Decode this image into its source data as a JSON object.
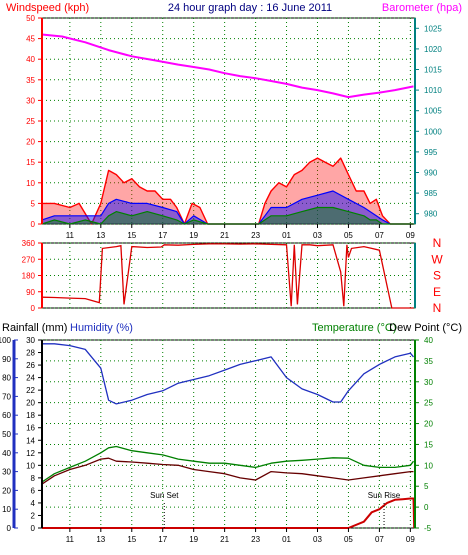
{
  "header": {
    "left_label": "Windspeed (kph)",
    "title": "24 hour graph day : 16 June 2011",
    "right_label": "Barometer (hpa)"
  },
  "colors": {
    "background": "#ffffff",
    "axis_left_upper": "#ff0000",
    "axis_right_upper": "#008080",
    "axis_left_lower": "#000000",
    "axis_right_lower": "#008000",
    "grid": "#008000",
    "wind_gust": "#ff0000",
    "wind_avg": "#0000ff",
    "wind_speed": "#008000",
    "barometer": "#ff00ff",
    "wind_dir": "#dd0000",
    "humidity": "#2030c0",
    "temperature": "#008000",
    "dew_point": "#660000",
    "rainfall": "#cc0000",
    "sun_marker": "#000000"
  },
  "lower_header": {
    "rainfall_label": "Rainfall (mm)",
    "humidity_label": "Humidity (%)",
    "temperature_label": "Temperature (°C)",
    "dewpoint_label": "Dew Point (°C)"
  },
  "sun": {
    "sunset_label": "Sun Set",
    "sunrise_label": "Sun Rise"
  },
  "chart_data": [
    {
      "type": "line",
      "name": "wind-and-barometer",
      "x_tick_labels": [
        "11",
        "13",
        "15",
        "17",
        "19",
        "21",
        "23",
        "01",
        "03",
        "05",
        "07",
        "09"
      ],
      "x_tick_hours": [
        11,
        13,
        15,
        17,
        19,
        21,
        23,
        25,
        27,
        29,
        31,
        33
      ],
      "xlim": [
        9.2,
        33.3
      ],
      "left_axis": {
        "ylim": [
          0,
          50
        ],
        "ticks": [
          0,
          5,
          10,
          15,
          20,
          25,
          30,
          35,
          40,
          45,
          50
        ]
      },
      "right_axis": {
        "ylim": [
          977.5,
          1027.5
        ],
        "ticks": [
          980,
          985,
          990,
          995,
          1000,
          1005,
          1010,
          1015,
          1020,
          1025
        ]
      },
      "series": [
        {
          "role": "barometer",
          "axis": "right",
          "x": [
            9.2,
            10.5,
            12,
            13.5,
            15,
            16.5,
            18,
            19,
            20,
            21,
            22,
            23,
            24,
            25,
            26,
            27,
            28,
            29,
            30,
            31,
            32,
            33.2
          ],
          "y": [
            1023.5,
            1023,
            1021.6,
            1019.7,
            1018.2,
            1017.2,
            1016.2,
            1015.6,
            1015,
            1014.1,
            1013.4,
            1012.9,
            1012.2,
            1011.5,
            1010.6,
            1010,
            1009.2,
            1008.3,
            1008.9,
            1009.4,
            1010,
            1010.9
          ]
        },
        {
          "role": "wind_gust",
          "axis": "left",
          "x": [
            9.2,
            10,
            11,
            11.6,
            12.4,
            13,
            13.5,
            14,
            14.5,
            15,
            15.5,
            16,
            16.5,
            17,
            17.5,
            17.9,
            18.4,
            18.9,
            19.4,
            19.9,
            20.5,
            22,
            23.2,
            23.6,
            24,
            24.5,
            25,
            25.5,
            26,
            26.5,
            27,
            27.5,
            28,
            28.5,
            29,
            29.5,
            30,
            30.4,
            30.8,
            31.2,
            31.7,
            32.6,
            33.2
          ],
          "y": [
            5,
            5,
            4,
            5,
            0,
            5,
            13,
            12,
            10,
            11,
            9,
            8,
            8,
            6,
            6,
            4,
            0,
            5,
            4,
            0,
            0,
            0,
            0,
            5,
            8,
            10,
            9,
            12,
            13,
            15,
            16,
            15,
            14,
            16,
            12,
            8,
            8,
            5,
            6,
            2,
            0,
            0,
            0
          ]
        },
        {
          "role": "wind_avg",
          "axis": "left",
          "x": [
            9.2,
            10,
            11,
            12,
            13,
            13.5,
            14,
            15,
            16,
            17,
            17.9,
            18.4,
            19,
            19.9,
            20.5,
            23.2,
            23.6,
            24,
            25,
            26,
            27,
            28,
            29,
            30,
            30.4,
            30.8,
            31.2,
            31.7,
            33.2
          ],
          "y": [
            1,
            2,
            2,
            2,
            2,
            5,
            6,
            5,
            5,
            4,
            3,
            0,
            2,
            0,
            0,
            0,
            2,
            4,
            4,
            6,
            7,
            8,
            6,
            4,
            3,
            2,
            1,
            0,
            0
          ]
        },
        {
          "role": "wind_speed",
          "axis": "left",
          "x": [
            9.2,
            10,
            11,
            12,
            13,
            13.5,
            14,
            15,
            16,
            17,
            17.9,
            18.4,
            19,
            19.9,
            20.5,
            23.2,
            23.6,
            24,
            25,
            26,
            27,
            28,
            29,
            30,
            30.4,
            30.8,
            31.2,
            31.7,
            33.2
          ],
          "y": [
            0,
            1,
            0,
            1,
            0,
            2,
            3,
            2,
            3,
            2,
            1,
            0,
            1,
            0,
            0,
            0,
            1,
            2,
            2,
            3,
            4,
            4,
            3,
            2,
            1,
            1,
            0,
            0,
            0
          ]
        }
      ]
    },
    {
      "type": "line",
      "name": "wind-direction",
      "ylim": [
        0,
        360
      ],
      "left_ticks": [
        0,
        90,
        180,
        270,
        360
      ],
      "direction_labels": [
        "N",
        "W",
        "S",
        "E",
        "N"
      ],
      "xlim": [
        9.2,
        33.3
      ],
      "series": [
        {
          "role": "wind_dir",
          "x": [
            9.2,
            10,
            11,
            12,
            12.9,
            13.1,
            14,
            14.3,
            14.5,
            15,
            16,
            16.9,
            17.1,
            18,
            19,
            20,
            21,
            22,
            23,
            24,
            25,
            25.3,
            25.5,
            25.7,
            26,
            26.5,
            27,
            28,
            28.5,
            28.7,
            28.9,
            29,
            29.2,
            30,
            30.5,
            31,
            31.8,
            33.2
          ],
          "y": [
            60,
            58,
            55,
            52,
            30,
            330,
            340,
            345,
            20,
            340,
            335,
            338,
            350,
            348,
            352,
            355,
            355,
            354,
            355,
            352,
            350,
            10,
            350,
            20,
            350,
            350,
            345,
            350,
            200,
            10,
            350,
            280,
            330,
            340,
            330,
            320,
            0,
            0
          ]
        }
      ]
    },
    {
      "type": "line",
      "name": "rain-humidity-temperature",
      "x_tick_labels": [
        "11",
        "13",
        "15",
        "17",
        "19",
        "21",
        "23",
        "01",
        "03",
        "05",
        "07",
        "09"
      ],
      "x_tick_hours": [
        11,
        13,
        15,
        17,
        19,
        21,
        23,
        25,
        27,
        29,
        31,
        33
      ],
      "xlim": [
        9.2,
        33.3
      ],
      "rainfall_axis": {
        "ylim": [
          0,
          30
        ],
        "ticks": [
          0,
          2,
          4,
          6,
          8,
          10,
          12,
          14,
          16,
          18,
          20,
          22,
          24,
          26,
          28,
          30
        ]
      },
      "humidity_axis": {
        "ylim": [
          0,
          100
        ],
        "ticks": [
          0,
          10,
          20,
          30,
          40,
          50,
          60,
          70,
          80,
          90,
          100
        ]
      },
      "temperature_axis": {
        "ylim": [
          -5,
          40
        ],
        "ticks": [
          -5,
          0,
          5,
          10,
          15,
          20,
          25,
          30,
          35,
          40
        ]
      },
      "series": [
        {
          "role": "humidity",
          "axis": "humidity",
          "x": [
            9.2,
            10,
            11,
            12,
            13,
            13.5,
            14,
            15,
            16,
            17,
            18,
            19,
            20,
            21,
            22,
            23,
            24,
            25,
            26,
            27,
            28,
            28.5,
            29,
            30,
            31,
            32,
            33,
            33.2
          ],
          "y": [
            98,
            98,
            97,
            95,
            85,
            68,
            66,
            68,
            71,
            73,
            77,
            79,
            81,
            84,
            87,
            89,
            91,
            80,
            74,
            71,
            67,
            67,
            73,
            82,
            87,
            91,
            93,
            91
          ]
        },
        {
          "role": "temperature",
          "axis": "temperature",
          "x": [
            9.2,
            10,
            11,
            12,
            13,
            13.5,
            14,
            15,
            16,
            17,
            18,
            19,
            20,
            21,
            22,
            23,
            24,
            25,
            26,
            27,
            28,
            29,
            30,
            31,
            32,
            33,
            33.2
          ],
          "y": [
            6,
            8,
            9.5,
            11,
            13,
            14.2,
            14.5,
            13.5,
            13,
            12.5,
            11.5,
            11,
            10.5,
            10.5,
            10,
            9.5,
            10.5,
            11,
            11.2,
            11.5,
            11.8,
            11.7,
            10,
            9.5,
            9.5,
            10,
            11
          ]
        },
        {
          "role": "dew_point",
          "axis": "temperature",
          "x": [
            9.2,
            10,
            11,
            12,
            13,
            13.5,
            14,
            15,
            16,
            17,
            18,
            19,
            20,
            21,
            22,
            23,
            24,
            25,
            26,
            27,
            28,
            29,
            30,
            31,
            32,
            33,
            33.2
          ],
          "y": [
            5.5,
            7.5,
            9,
            10,
            11.5,
            11.7,
            11,
            10.8,
            10.5,
            10.2,
            10,
            9,
            8.5,
            8,
            7,
            6.5,
            8.5,
            8.2,
            8,
            7.5,
            7,
            6.5,
            7,
            7.5,
            8,
            8.5,
            8.5
          ]
        },
        {
          "role": "rainfall",
          "axis": "rainfall",
          "x": [
            9.2,
            29,
            30,
            30.5,
            31,
            31.5,
            32,
            32.5,
            33,
            33.2,
            33.25
          ],
          "y": [
            0,
            0,
            1,
            2.5,
            3,
            4,
            4.5,
            4.6,
            4.7,
            4.7,
            0
          ]
        }
      ],
      "markers": [
        {
          "role": "sunset",
          "hour": 17.1
        },
        {
          "role": "sunrise",
          "hour": 31.3
        }
      ]
    }
  ]
}
